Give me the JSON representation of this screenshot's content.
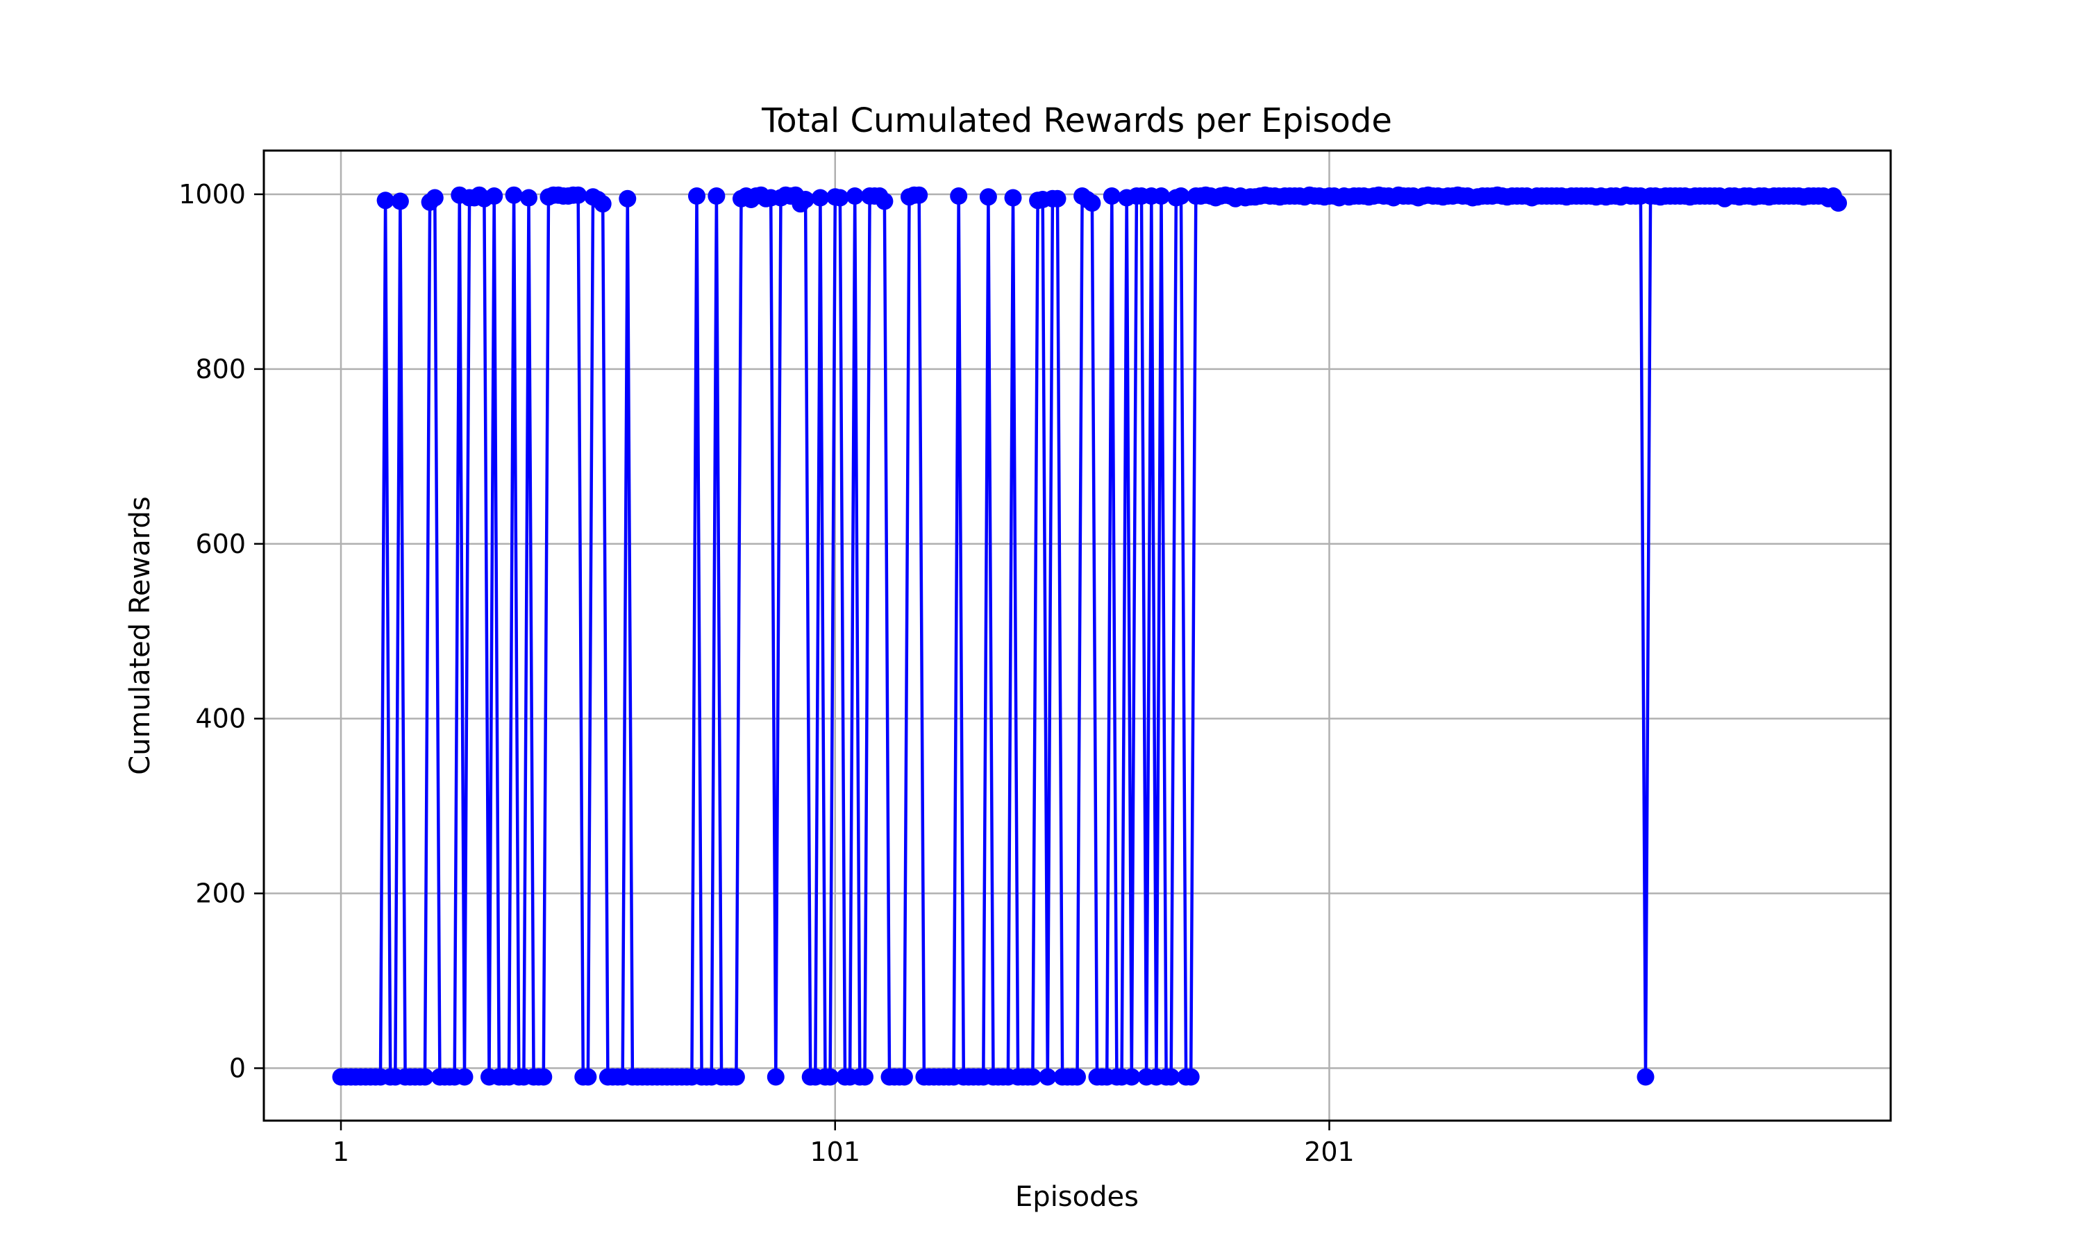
{
  "chart_data": {
    "type": "line",
    "title": "Total Cumulated Rewards per Episode",
    "xlabel": "Episodes",
    "ylabel": "Cumulated Rewards",
    "xlim": [
      -14.6,
      314.6
    ],
    "ylim": [
      -60,
      1050
    ],
    "xticks": [
      1,
      101,
      201
    ],
    "xtick_labels": [
      "1",
      "101",
      "201"
    ],
    "yticks": [
      0,
      200,
      400,
      600,
      800,
      1000
    ],
    "ytick_labels": [
      "0",
      "200",
      "400",
      "600",
      "800",
      "1000"
    ],
    "grid": true,
    "legend": "none",
    "marker": "circle",
    "color": "#0000ff",
    "series": [
      {
        "x_start": 1,
        "values": [
          -10,
          -10,
          -10,
          -10,
          -10,
          -10,
          -10,
          -10,
          -10,
          993,
          -10,
          -10,
          992,
          -10,
          -10,
          -10,
          -10,
          -10,
          991,
          996,
          -10,
          -10,
          -10,
          -10,
          999,
          -10,
          996,
          996,
          999,
          995,
          -10,
          998,
          -10,
          -10,
          -10,
          999,
          -10,
          -10,
          996,
          -10,
          -10,
          -10,
          997,
          999,
          999,
          998,
          998,
          999,
          999,
          -10,
          -10,
          997,
          994,
          989,
          -10,
          -10,
          -10,
          -10,
          995,
          -10,
          -10,
          -10,
          -10,
          -10,
          -10,
          -10,
          -10,
          -10,
          -10,
          -10,
          -10,
          -10,
          998,
          -10,
          -10,
          -10,
          998,
          -10,
          -10,
          -10,
          -10,
          995,
          998,
          994,
          998,
          999,
          995,
          996,
          -10,
          996,
          999,
          998,
          999,
          989,
          994,
          -10,
          -10,
          996,
          -10,
          -10,
          997,
          996,
          -10,
          -10,
          998,
          -10,
          -10,
          998,
          998,
          998,
          992,
          -10,
          -10,
          -10,
          -10,
          997,
          999,
          999,
          -10,
          -10,
          -10,
          -10,
          -10,
          -10,
          -10,
          998,
          -10,
          -10,
          -10,
          -10,
          -10,
          997,
          -10,
          -10,
          -10,
          -10,
          996,
          -10,
          -10,
          -10,
          -10,
          993,
          994,
          -10,
          995,
          995,
          -10,
          -10,
          -10,
          -10,
          998,
          994,
          990,
          -10,
          -10,
          -10,
          998,
          -10,
          -10,
          996,
          -10,
          998,
          998,
          -10,
          998,
          -10,
          998,
          -10,
          -10,
          996,
          998,
          -10,
          -10,
          998,
          998,
          999,
          998,
          996,
          998,
          999,
          998,
          995,
          998,
          996,
          997,
          997,
          998,
          999,
          998,
          998,
          997,
          998,
          998,
          998,
          998,
          997,
          999,
          998,
          998,
          997,
          998,
          998,
          996,
          998,
          997,
          998,
          998,
          998,
          997,
          998,
          999,
          998,
          998,
          996,
          999,
          998,
          998,
          998,
          996,
          998,
          999,
          998,
          998,
          997,
          998,
          998,
          999,
          998,
          998,
          996,
          997,
          998,
          998,
          998,
          999,
          998,
          997,
          998,
          998,
          998,
          998,
          996,
          998,
          998,
          998,
          998,
          998,
          998,
          997,
          998,
          998,
          998,
          998,
          998,
          997,
          998,
          997,
          998,
          998,
          997,
          999,
          998,
          998,
          998,
          -10,
          998,
          998,
          997,
          998,
          998,
          998,
          998,
          998,
          997,
          998,
          998,
          998,
          998,
          998,
          998,
          995,
          998,
          998,
          997,
          998,
          998,
          997,
          998,
          998,
          997,
          998,
          998,
          998,
          998,
          998,
          998,
          997,
          998,
          998,
          998,
          998,
          995,
          998,
          990
        ]
      }
    ]
  }
}
